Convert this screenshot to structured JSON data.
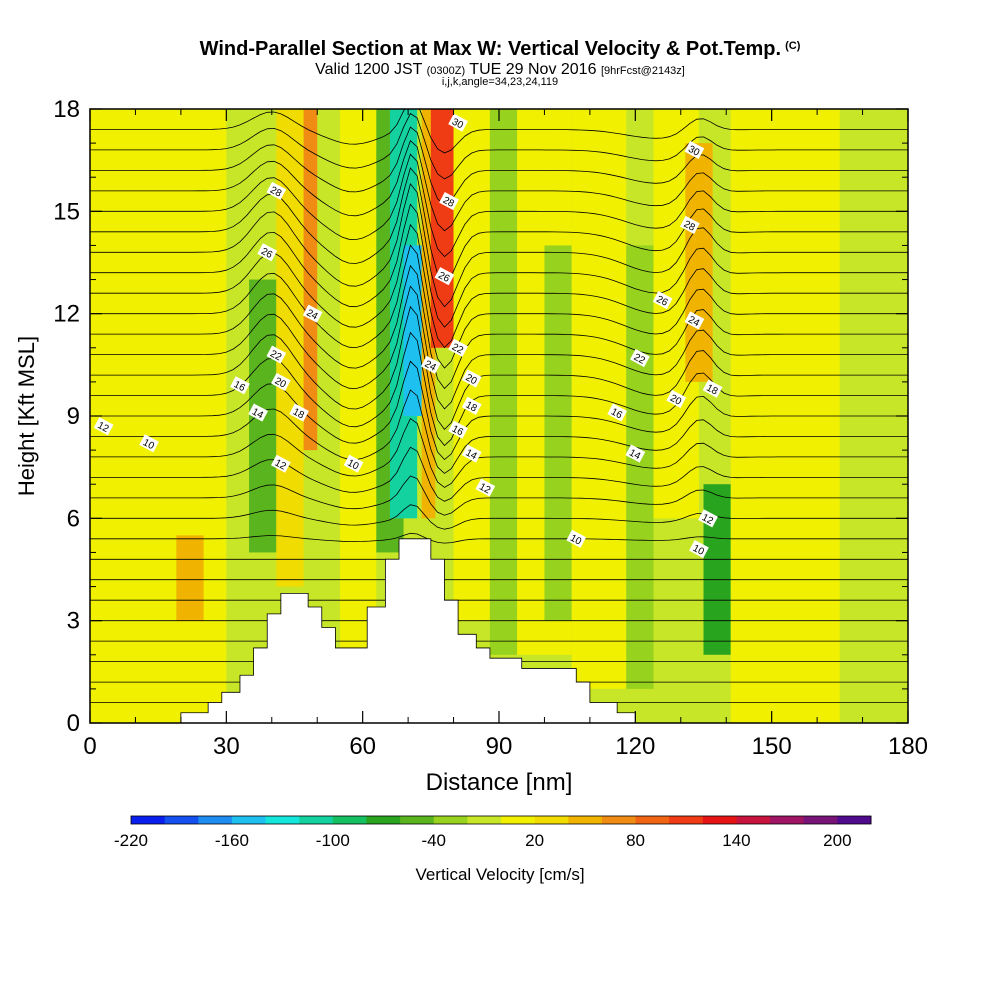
{
  "chart_data": {
    "type": "contour",
    "title": "Wind-Parallel Section at Max W: Vertical Velocity & Pot.Temp.",
    "title_mark": "(C)",
    "subtitle_valid": "Valid 1200 JST",
    "subtitle_utc": "(0300Z)",
    "subtitle_date": "TUE 29 Nov 2016",
    "subtitle_fcst": "[9hrFcst@2143z]",
    "subtitle_indices": "i,j,k,angle=34,23,24,119",
    "xlabel": "Distance [nm]",
    "ylabel": "Height [Kft MSL]",
    "xlim": [
      0,
      180
    ],
    "ylim": [
      0,
      18
    ],
    "xticks": [
      0,
      30,
      60,
      90,
      120,
      150,
      180
    ],
    "yticks": [
      0,
      3,
      6,
      9,
      12,
      15,
      18
    ],
    "colorbar": {
      "label": "Vertical Velocity [cm/s]",
      "tick_labels": [
        "-220",
        "-160",
        "-100",
        "-40",
        "20",
        "80",
        "140",
        "200"
      ],
      "colors": [
        "#0a1ef0",
        "#1450f0",
        "#1e8cf0",
        "#1ec0f0",
        "#14e6dc",
        "#14d2a0",
        "#14c060",
        "#28a41e",
        "#5ab41e",
        "#96d21e",
        "#c8e628",
        "#f0f000",
        "#f0dc00",
        "#f0b400",
        "#f08c14",
        "#f06414",
        "#f03c14",
        "#e61414",
        "#c8143c",
        "#a01464",
        "#781478",
        "#500a8c"
      ]
    },
    "terrain": [
      [
        0,
        0
      ],
      [
        20,
        0
      ],
      [
        20,
        0.3
      ],
      [
        26,
        0.3
      ],
      [
        26,
        0.6
      ],
      [
        29,
        0.6
      ],
      [
        29,
        0.9
      ],
      [
        33,
        0.9
      ],
      [
        33,
        1.4
      ],
      [
        36,
        1.4
      ],
      [
        36,
        2.2
      ],
      [
        39,
        2.2
      ],
      [
        39,
        3.2
      ],
      [
        42,
        3.2
      ],
      [
        42,
        3.8
      ],
      [
        48,
        3.8
      ],
      [
        48,
        3.4
      ],
      [
        51,
        3.4
      ],
      [
        51,
        2.8
      ],
      [
        54,
        2.8
      ],
      [
        54,
        2.2
      ],
      [
        61,
        2.2
      ],
      [
        61,
        3.4
      ],
      [
        65,
        3.4
      ],
      [
        65,
        4.8
      ],
      [
        68,
        4.8
      ],
      [
        68,
        5.4
      ],
      [
        75,
        5.4
      ],
      [
        75,
        4.8
      ],
      [
        78,
        4.8
      ],
      [
        78,
        3.6
      ],
      [
        81,
        3.6
      ],
      [
        81,
        2.6
      ],
      [
        85,
        2.6
      ],
      [
        85,
        2.2
      ],
      [
        88,
        2.2
      ],
      [
        88,
        1.9
      ],
      [
        95,
        1.9
      ],
      [
        95,
        1.6
      ],
      [
        107,
        1.6
      ],
      [
        107,
        1.2
      ],
      [
        110,
        1.2
      ],
      [
        110,
        0.6
      ],
      [
        116,
        0.6
      ],
      [
        116,
        0.3
      ],
      [
        120,
        0.3
      ],
      [
        120,
        0
      ],
      [
        180,
        0
      ]
    ],
    "wbands": [
      {
        "x": 0,
        "w": 180,
        "y0": 0,
        "y1": 18,
        "color": "#c8e628"
      },
      {
        "x": 0,
        "w": 30,
        "y0": 0,
        "y1": 18,
        "color": "#f0f000"
      },
      {
        "x": 6,
        "w": 14,
        "y0": 9.5,
        "y1": 12.5,
        "color": "#f0f000"
      },
      {
        "x": 19,
        "w": 6,
        "y0": 3,
        "y1": 5.5,
        "color": "#f0b400"
      },
      {
        "x": 35,
        "w": 6,
        "y0": 5,
        "y1": 13,
        "color": "#5ab41e"
      },
      {
        "x": 41,
        "w": 6,
        "y0": 4,
        "y1": 18,
        "color": "#f0dc00"
      },
      {
        "x": 47,
        "w": 6,
        "y0": 8,
        "y1": 18,
        "color": "#f08c14"
      },
      {
        "x": 50,
        "w": 6,
        "y0": 3,
        "y1": 18,
        "color": "#c8e628"
      },
      {
        "x": 55,
        "w": 8,
        "y0": 2,
        "y1": 18,
        "color": "#f0f000"
      },
      {
        "x": 63,
        "w": 6,
        "y0": 5,
        "y1": 18,
        "color": "#5ab41e"
      },
      {
        "x": 66,
        "w": 6,
        "y0": 6,
        "y1": 18,
        "color": "#14d2a0"
      },
      {
        "x": 69,
        "w": 4,
        "y0": 9,
        "y1": 14,
        "color": "#1ec0f0"
      },
      {
        "x": 73,
        "w": 3,
        "y0": 6,
        "y1": 18,
        "color": "#f0b400"
      },
      {
        "x": 75,
        "w": 5,
        "y0": 11,
        "y1": 18,
        "color": "#f03c14"
      },
      {
        "x": 80,
        "w": 8,
        "y0": 3,
        "y1": 18,
        "color": "#f0f000"
      },
      {
        "x": 88,
        "w": 6,
        "y0": 2,
        "y1": 18,
        "color": "#96d21e"
      },
      {
        "x": 94,
        "w": 12,
        "y0": 2,
        "y1": 18,
        "color": "#f0f000"
      },
      {
        "x": 100,
        "w": 6,
        "y0": 3,
        "y1": 14,
        "color": "#96d21e"
      },
      {
        "x": 106,
        "w": 12,
        "y0": 1,
        "y1": 18,
        "color": "#f0f000"
      },
      {
        "x": 118,
        "w": 6,
        "y0": 1,
        "y1": 14,
        "color": "#96d21e"
      },
      {
        "x": 124,
        "w": 10,
        "y0": 6,
        "y1": 18,
        "color": "#f0f000"
      },
      {
        "x": 131,
        "w": 6,
        "y0": 10,
        "y1": 17,
        "color": "#f0b400"
      },
      {
        "x": 135,
        "w": 6,
        "y0": 2,
        "y1": 7,
        "color": "#28a41e"
      },
      {
        "x": 141,
        "w": 24,
        "y0": 0,
        "y1": 18,
        "color": "#f0f000"
      },
      {
        "x": 165,
        "w": 15,
        "y0": 0,
        "y1": 18,
        "color": "#c8e628"
      }
    ],
    "theta_labels": [
      {
        "text": "12",
        "x": 3,
        "y": 8.7
      },
      {
        "text": "10",
        "x": 13,
        "y": 8.2
      },
      {
        "text": "16",
        "x": 33,
        "y": 9.9
      },
      {
        "text": "14",
        "x": 37,
        "y": 9.1
      },
      {
        "text": "20",
        "x": 42,
        "y": 10.0
      },
      {
        "text": "18",
        "x": 46,
        "y": 9.1
      },
      {
        "text": "22",
        "x": 41,
        "y": 10.8
      },
      {
        "text": "12",
        "x": 42,
        "y": 7.6
      },
      {
        "text": "24",
        "x": 49,
        "y": 12.0
      },
      {
        "text": "26",
        "x": 39,
        "y": 13.8
      },
      {
        "text": "28",
        "x": 41,
        "y": 15.6
      },
      {
        "text": "10",
        "x": 58,
        "y": 7.6
      },
      {
        "text": "24",
        "x": 75,
        "y": 10.5
      },
      {
        "text": "26",
        "x": 78,
        "y": 13.1
      },
      {
        "text": "28",
        "x": 79,
        "y": 15.3
      },
      {
        "text": "30",
        "x": 81,
        "y": 17.6
      },
      {
        "text": "22",
        "x": 81,
        "y": 11.0
      },
      {
        "text": "20",
        "x": 84,
        "y": 10.1
      },
      {
        "text": "18",
        "x": 84,
        "y": 9.3
      },
      {
        "text": "16",
        "x": 81,
        "y": 8.6
      },
      {
        "text": "14",
        "x": 84,
        "y": 7.9
      },
      {
        "text": "12",
        "x": 87,
        "y": 6.9
      },
      {
        "text": "10",
        "x": 107,
        "y": 5.4
      },
      {
        "text": "16",
        "x": 116,
        "y": 9.1
      },
      {
        "text": "14",
        "x": 120,
        "y": 7.9
      },
      {
        "text": "22",
        "x": 121,
        "y": 10.7
      },
      {
        "text": "20",
        "x": 129,
        "y": 9.5
      },
      {
        "text": "18",
        "x": 137,
        "y": 9.8
      },
      {
        "text": "26",
        "x": 126,
        "y": 12.4
      },
      {
        "text": "24",
        "x": 133,
        "y": 11.8
      },
      {
        "text": "28",
        "x": 132,
        "y": 14.6
      },
      {
        "text": "30",
        "x": 133,
        "y": 16.8
      },
      {
        "text": "12",
        "x": 136,
        "y": 6.0
      },
      {
        "text": "10",
        "x": 134,
        "y": 5.1
      }
    ]
  }
}
